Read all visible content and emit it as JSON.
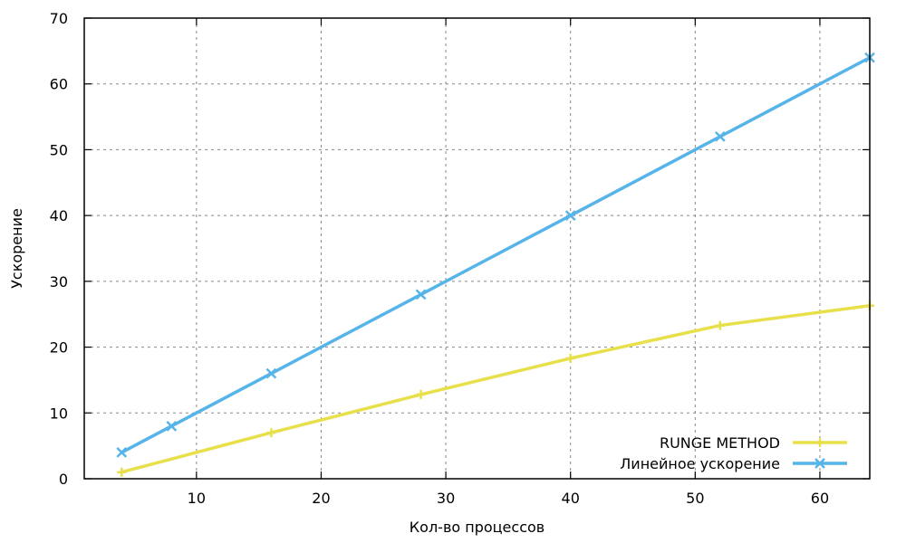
{
  "chart_data": {
    "type": "line",
    "xlabel": "Кол-во процессов",
    "ylabel": "Ускорение",
    "xlim": [
      1,
      64
    ],
    "ylim": [
      0,
      70
    ],
    "xticks": [
      10,
      20,
      30,
      40,
      50,
      60
    ],
    "yticks": [
      0,
      10,
      20,
      30,
      40,
      50,
      60,
      70
    ],
    "grid": true,
    "legend_position": "bottom-right",
    "series": [
      {
        "name": "RUNGE METHOD",
        "color": "#e8e04a",
        "marker": "plus",
        "x": [
          4,
          16,
          28,
          40,
          52,
          64
        ],
        "y": [
          1.0,
          7.0,
          12.8,
          18.3,
          23.3,
          26.3
        ]
      },
      {
        "name": "Линейное ускорение",
        "color": "#56b4e9",
        "marker": "cross",
        "x": [
          4,
          8,
          16,
          28,
          40,
          52,
          64
        ],
        "y": [
          4,
          8,
          16,
          28,
          40,
          52,
          64
        ]
      }
    ]
  }
}
